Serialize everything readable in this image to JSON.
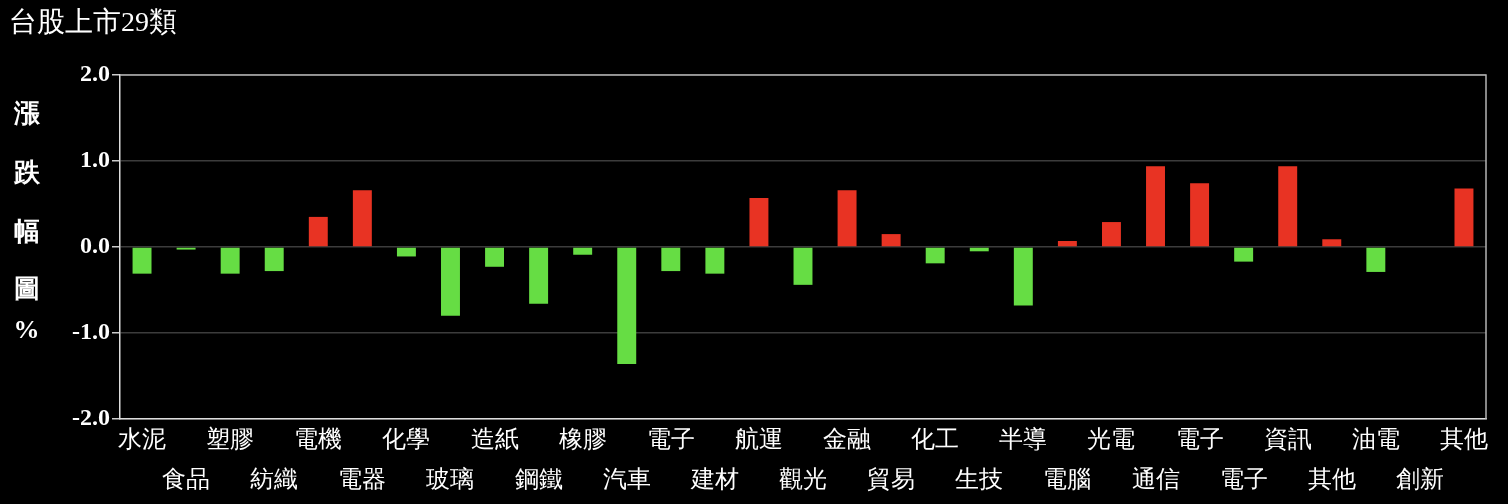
{
  "chart_data": {
    "type": "bar",
    "title": "台股上市29類",
    "ylabel": "漲跌幅圖%",
    "categories": [
      "水泥",
      "食品",
      "塑膠",
      "紡織",
      "電機",
      "電器",
      "化學",
      "玻璃",
      "造紙",
      "鋼鐵",
      "橡膠",
      "汽車",
      "電子",
      "建材",
      "航運",
      "觀光",
      "金融",
      "貿易",
      "化工",
      "生技",
      "半導",
      "電腦",
      "光電",
      "通信",
      "電子",
      "電子",
      "資訊",
      "其他",
      "油電",
      "創新",
      "其他"
    ],
    "values": [
      -0.31,
      -0.03,
      -0.31,
      -0.28,
      0.35,
      0.66,
      -0.11,
      -0.8,
      -0.23,
      -0.66,
      -0.09,
      -1.36,
      -0.28,
      -0.31,
      0.57,
      -0.44,
      0.66,
      0.15,
      -0.19,
      -0.05,
      -0.68,
      0.07,
      0.29,
      0.94,
      0.74,
      -0.17,
      0.94,
      0.09,
      -0.29,
      null,
      0.68
    ],
    "colors": [
      "#66dd44",
      "#66dd44",
      "#66dd44",
      "#66dd44",
      "#e83323",
      "#e83323",
      "#66dd44",
      "#66dd44",
      "#66dd44",
      "#66dd44",
      "#66dd44",
      "#66dd44",
      "#66dd44",
      "#66dd44",
      "#e83323",
      "#66dd44",
      "#e83323",
      "#e83323",
      "#66dd44",
      "#66dd44",
      "#66dd44",
      "#e83323",
      "#e83323",
      "#e83323",
      "#e83323",
      "#66dd44",
      "#e83323",
      "#e83323",
      "#66dd44",
      "#e83323",
      "#e83323"
    ],
    "ylim": [
      -2,
      2
    ],
    "yticks": [
      {
        "value": -2,
        "label": "-2.0"
      },
      {
        "value": -1,
        "label": "-1.0"
      },
      {
        "value": 0,
        "label": "0.0"
      },
      {
        "value": 1,
        "label": "1.0"
      },
      {
        "value": 2,
        "label": "2.0"
      }
    ],
    "grid": "y"
  }
}
